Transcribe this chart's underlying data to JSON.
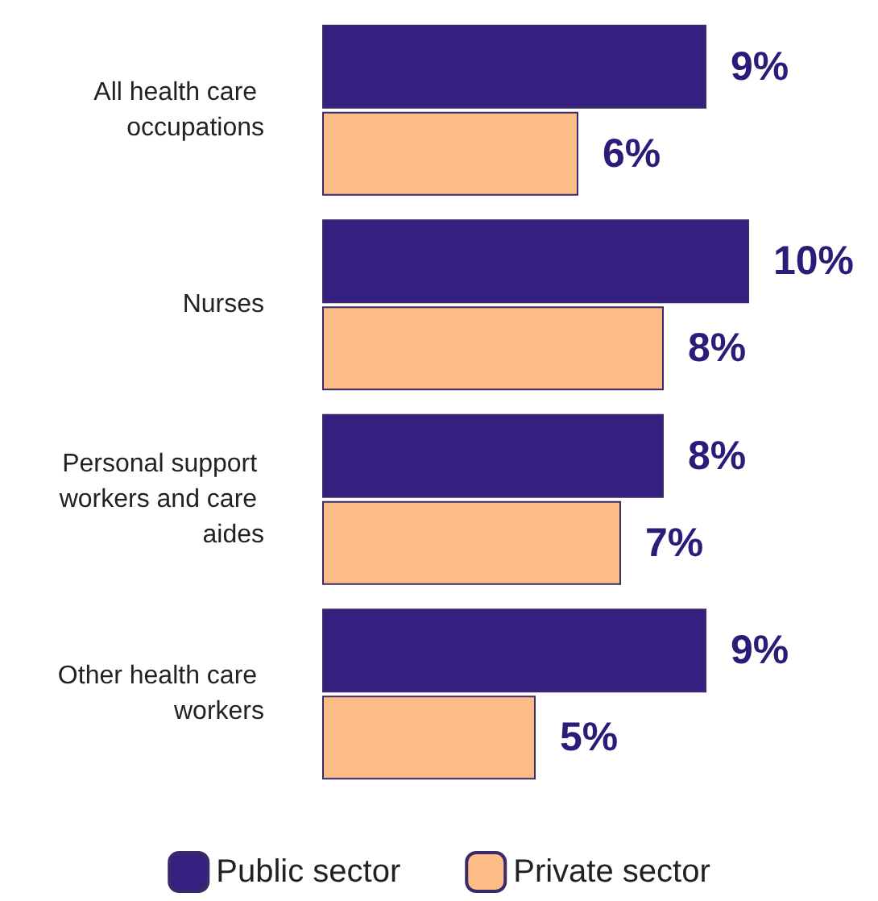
{
  "chart_data": {
    "type": "bar",
    "orientation": "horizontal",
    "categories": [
      "All health care occupations",
      "Nurses",
      "Personal support workers and care aides",
      "Other health care workers"
    ],
    "series": [
      {
        "name": "Public sector",
        "color": "#36207f",
        "values": [
          9,
          10,
          8,
          9
        ],
        "value_labels": [
          "9%",
          "10%",
          "8%",
          "9%"
        ]
      },
      {
        "name": "Private sector",
        "color": "#fcbc86",
        "values": [
          6,
          8,
          7,
          5
        ],
        "value_labels": [
          "6%",
          "8%",
          "7%",
          "5%"
        ]
      }
    ],
    "legend": "bottom"
  }
}
